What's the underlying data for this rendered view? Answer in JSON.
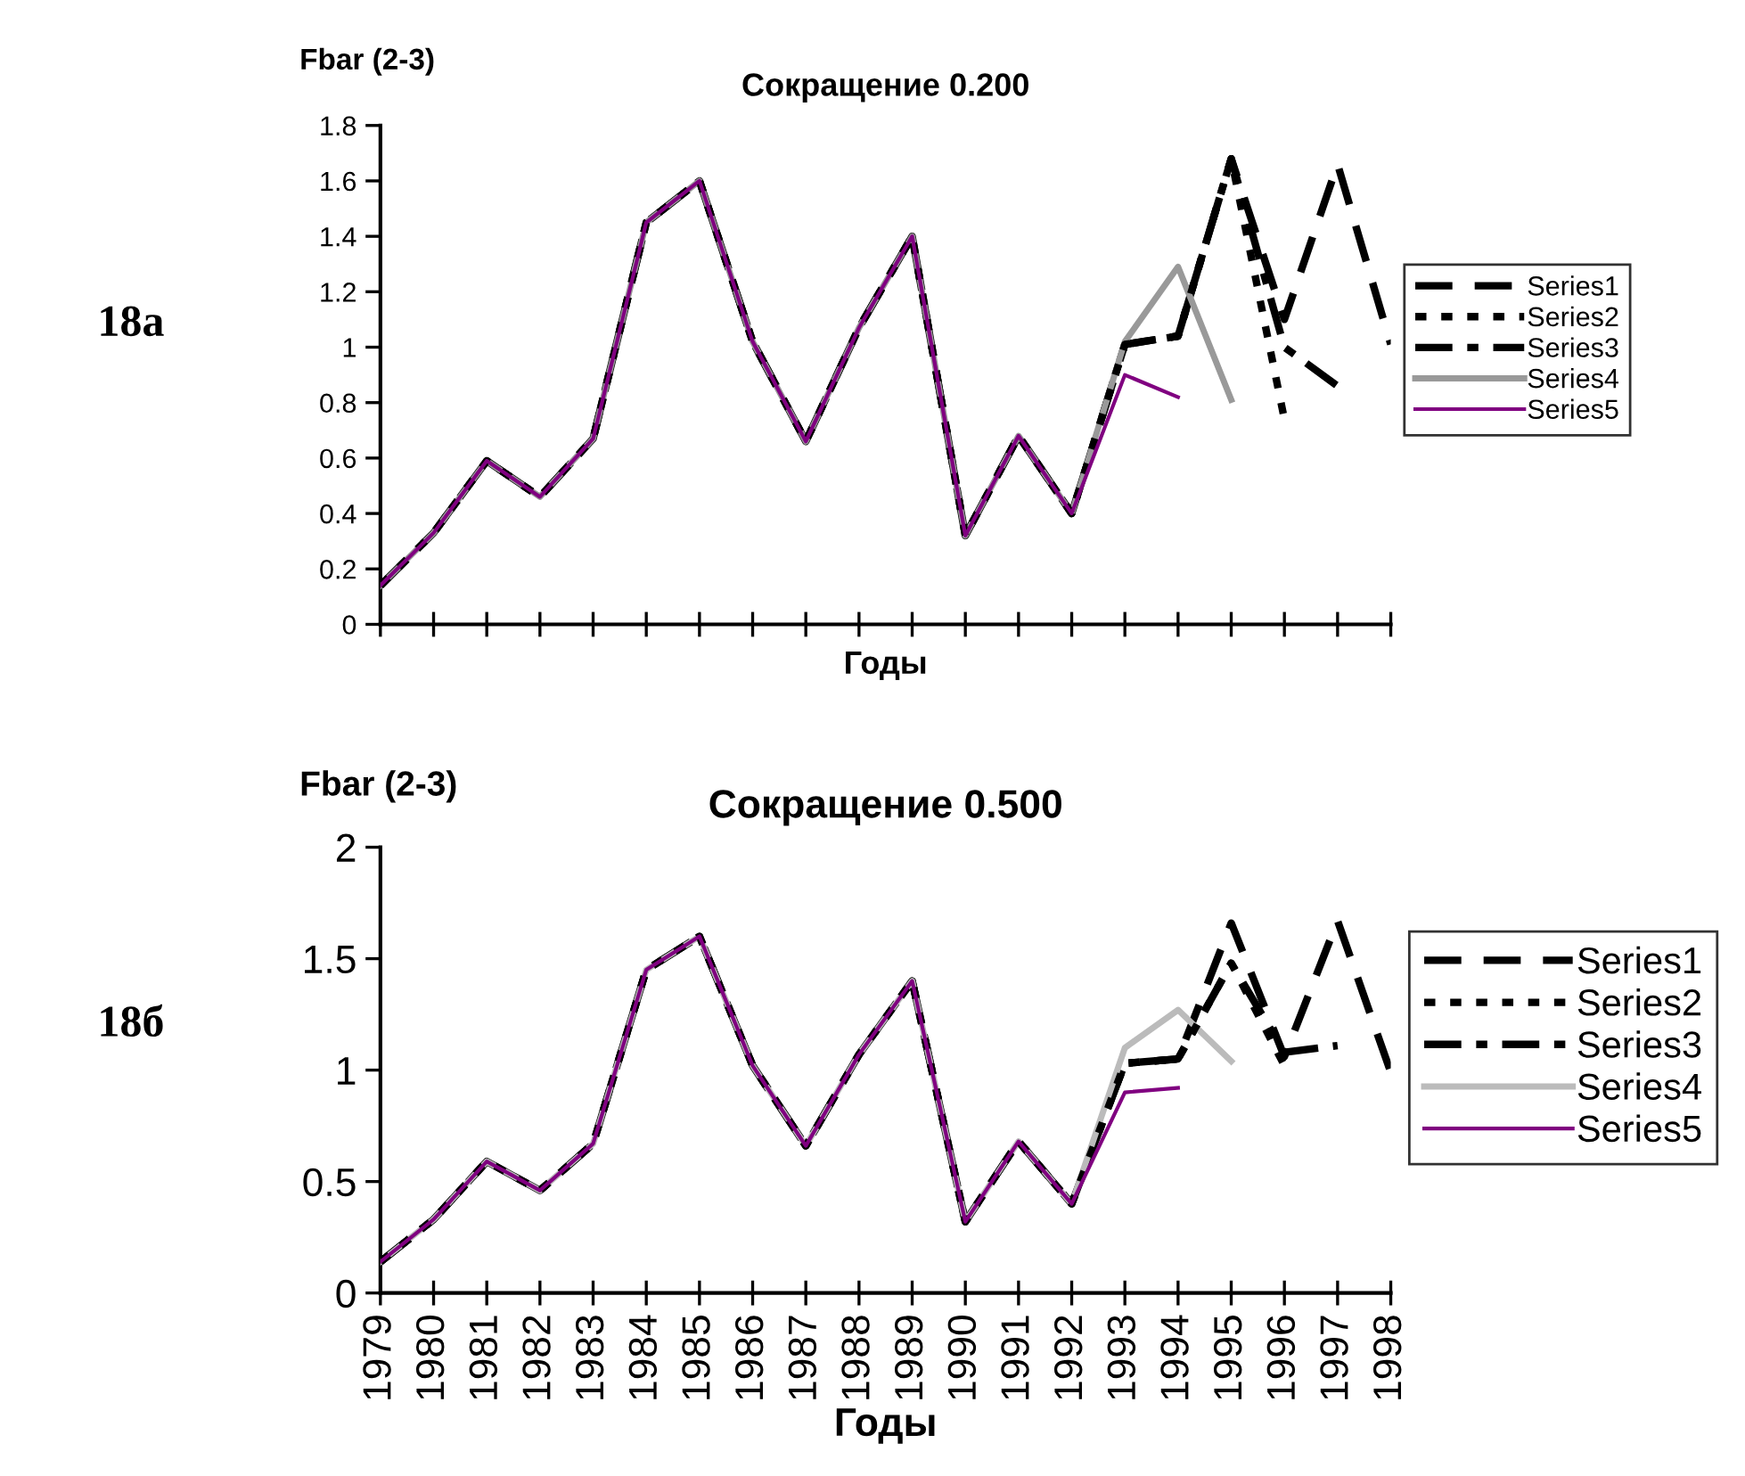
{
  "chart_data": [
    {
      "type": "line",
      "title": "Сокращение 0.200",
      "ylabel": "Fbar (2-3)",
      "xlabel": "Годы",
      "annotations": [
        "18а"
      ],
      "categories": [
        null,
        null,
        null,
        null,
        null,
        null,
        null,
        null,
        null,
        null,
        null,
        null,
        null,
        null,
        null,
        null,
        null,
        null,
        null,
        null
      ],
      "tick_labels": "y",
      "ylim": [
        0,
        1.8
      ],
      "yticks": [
        0,
        0.2,
        0.4,
        0.6,
        0.8,
        1,
        1.2,
        1.4,
        1.6,
        1.8
      ],
      "grid": false,
      "legend": "right",
      "marker": "none",
      "series": [
        {
          "name": "Series1",
          "color": "#000000",
          "line_style": "dashed",
          "values": [
            0.14,
            0.33,
            0.59,
            0.46,
            0.67,
            1.45,
            1.6,
            1.02,
            0.66,
            1.07,
            1.4,
            0.32,
            0.68,
            0.4,
            1.01,
            1.04,
            1.68,
            1.1,
            1.66,
            1.01
          ]
        },
        {
          "name": "Series2",
          "color": "#000000",
          "line_style": "dotted",
          "values": [
            0.14,
            0.33,
            0.59,
            0.46,
            0.67,
            1.45,
            1.6,
            1.02,
            0.66,
            1.07,
            1.4,
            0.32,
            0.68,
            0.4,
            1.01,
            1.04,
            1.68,
            0.74,
            null,
            null
          ]
        },
        {
          "name": "Series3",
          "color": "#000000",
          "line_style": "dashed",
          "values": [
            0.14,
            0.33,
            0.59,
            0.46,
            0.67,
            1.45,
            1.6,
            1.02,
            0.66,
            1.07,
            1.4,
            0.32,
            0.68,
            0.4,
            1.01,
            1.04,
            1.68,
            1.0,
            0.86,
            null
          ]
        },
        {
          "name": "Series4",
          "color": "#999999",
          "line_style": "solid",
          "values": [
            0.14,
            0.33,
            0.59,
            0.46,
            0.67,
            1.45,
            1.6,
            1.02,
            0.66,
            1.07,
            1.4,
            0.32,
            0.68,
            0.4,
            1.02,
            1.29,
            0.81,
            null,
            null,
            null
          ]
        },
        {
          "name": "Series5",
          "color": "#800080",
          "line_style": "solid",
          "values": [
            0.14,
            0.33,
            0.59,
            0.46,
            0.67,
            1.45,
            1.6,
            1.02,
            0.66,
            1.07,
            1.4,
            0.32,
            0.68,
            0.4,
            0.9,
            0.82,
            null,
            null,
            null,
            null
          ]
        }
      ]
    },
    {
      "type": "line",
      "title": "Сокращение 0.500",
      "ylabel": "Fbar (2-3)",
      "xlabel": "Годы",
      "annotations": [
        "18б"
      ],
      "categories": [
        "1979",
        "1980",
        "1981",
        "1982",
        "1983",
        "1984",
        "1985",
        "1986",
        "1987",
        "1988",
        "1989",
        "1990",
        "1991",
        "1992",
        "1993",
        "1994",
        "1995",
        "1996",
        "1997",
        "1998"
      ],
      "ylim": [
        0,
        2
      ],
      "yticks": [
        0,
        0.5,
        1,
        1.5,
        2
      ],
      "grid": false,
      "legend": "right",
      "marker": "none",
      "series": [
        {
          "name": "Series1",
          "color": "#000000",
          "line_style": "dashed",
          "values": [
            0.14,
            0.33,
            0.59,
            0.46,
            0.67,
            1.45,
            1.6,
            1.02,
            0.66,
            1.07,
            1.4,
            0.32,
            0.68,
            0.4,
            1.03,
            1.05,
            1.66,
            1.06,
            1.67,
            0.99
          ]
        },
        {
          "name": "Series2",
          "color": "#000000",
          "line_style": "dotted",
          "values": [
            0.14,
            0.33,
            0.59,
            0.46,
            0.67,
            1.45,
            1.6,
            1.02,
            0.66,
            1.07,
            1.4,
            0.32,
            0.68,
            0.4,
            1.03,
            1.05,
            1.48,
            1.02,
            null,
            null
          ]
        },
        {
          "name": "Series3",
          "color": "#000000",
          "line_style": "dashed",
          "values": [
            0.14,
            0.33,
            0.59,
            0.46,
            0.67,
            1.45,
            1.6,
            1.02,
            0.66,
            1.07,
            1.4,
            0.32,
            0.68,
            0.4,
            1.03,
            1.05,
            1.48,
            1.08,
            1.11,
            null
          ]
        },
        {
          "name": "Series4",
          "color": "#bbbbbb",
          "line_style": "solid",
          "values": [
            0.14,
            0.33,
            0.59,
            0.46,
            0.67,
            1.45,
            1.6,
            1.02,
            0.66,
            1.07,
            1.4,
            0.32,
            0.68,
            0.4,
            1.1,
            1.27,
            1.04,
            null,
            null,
            null
          ]
        },
        {
          "name": "Series5",
          "color": "#800080",
          "line_style": "solid",
          "values": [
            0.14,
            0.33,
            0.59,
            0.46,
            0.67,
            1.45,
            1.6,
            1.02,
            0.66,
            1.07,
            1.4,
            0.32,
            0.68,
            0.4,
            0.9,
            0.92,
            null,
            null,
            null,
            null
          ]
        }
      ]
    }
  ]
}
